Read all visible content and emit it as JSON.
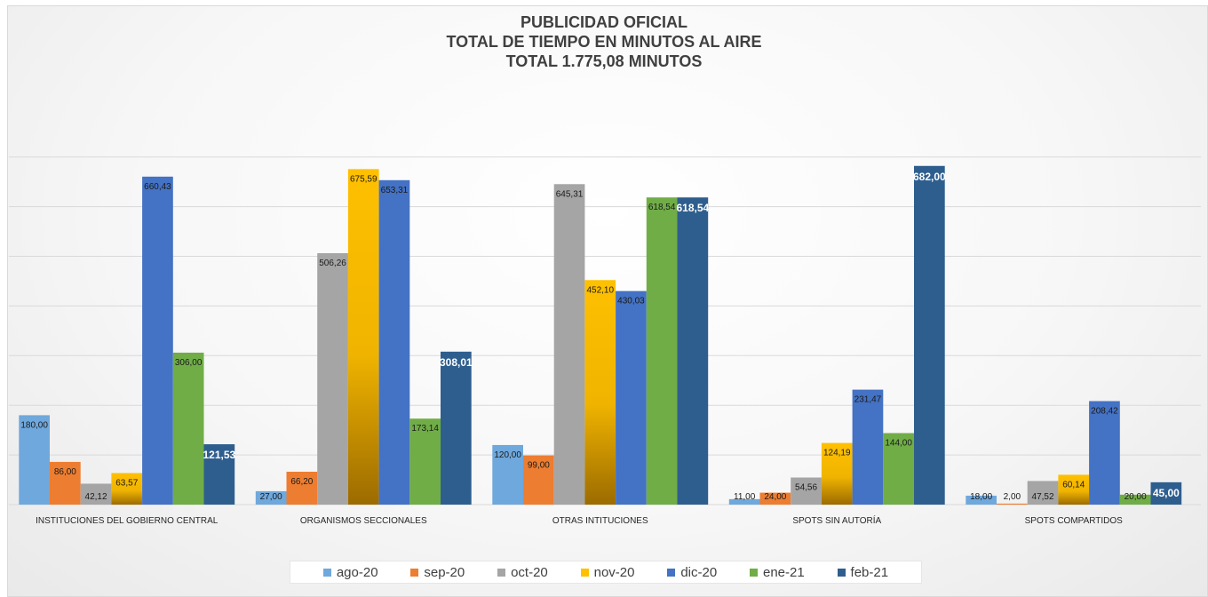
{
  "chart_data": {
    "type": "bar",
    "title": [
      "PUBLICIDAD OFICIAL",
      "TOTAL DE TIEMPO EN MINUTOS AL AIRE",
      "TOTAL 1.775,08 MINUTOS"
    ],
    "categories": [
      "INSTITUCIONES DEL GOBIERNO CENTRAL",
      "ORGANISMOS SECCIONALES",
      "OTRAS INTITUCIONES",
      "SPOTS SIN AUTORÍA",
      "SPOTS COMPARTIDOS"
    ],
    "series": [
      {
        "name": "ago-20",
        "color": "#6fa8dc",
        "values": [
          180.0,
          27.0,
          120.0,
          11.0,
          18.0
        ],
        "labels": [
          "180,00",
          "27,00",
          "120,00",
          "11,00",
          "18,00"
        ]
      },
      {
        "name": "sep-20",
        "color": "#ed7d31",
        "values": [
          86.0,
          66.2,
          99.0,
          24.0,
          2.0
        ],
        "labels": [
          "86,00",
          "66,20",
          "99,00",
          "24,00",
          "2,00"
        ]
      },
      {
        "name": "oct-20",
        "color": "#a5a5a5",
        "values": [
          42.12,
          506.26,
          645.31,
          54.56,
          47.52
        ],
        "labels": [
          "42,12",
          "506,26",
          "645,31",
          "54,56",
          "47,52"
        ]
      },
      {
        "name": "nov-20",
        "color": "#ffc000",
        "values": [
          63.57,
          675.59,
          452.1,
          124.19,
          60.14
        ],
        "labels": [
          "63,57",
          "675,59",
          "452,10",
          "124,19",
          "60,14"
        ]
      },
      {
        "name": "dic-20",
        "color": "#4472c4",
        "values": [
          660.43,
          653.31,
          430.03,
          231.47,
          208.42
        ],
        "labels": [
          "660,43",
          "653,31",
          "430,03",
          "231,47",
          "208,42"
        ]
      },
      {
        "name": "ene-21",
        "color": "#70ad47",
        "values": [
          306.0,
          173.14,
          618.54,
          144.0,
          20.0
        ],
        "labels": [
          "306,00",
          "173,14",
          "618,54",
          "144,00",
          "20,00"
        ]
      },
      {
        "name": "feb-21",
        "color": "#2e5e8e",
        "values": [
          121.53,
          308.01,
          618.54,
          682.0,
          45.0
        ],
        "labels": [
          "121,53",
          "308,01",
          "618,54",
          "682,00",
          "45,00"
        ]
      }
    ],
    "ylim": [
      0,
      700
    ],
    "grid": true,
    "legend_position": "bottom"
  }
}
